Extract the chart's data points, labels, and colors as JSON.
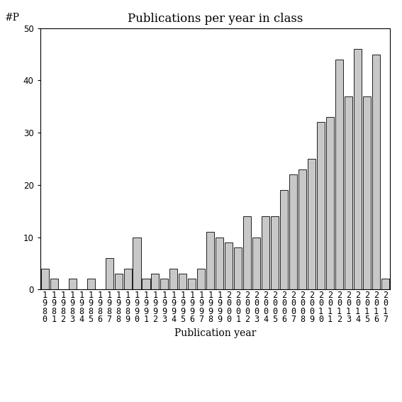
{
  "title": "Publications per year in class",
  "xlabel": "Publication year",
  "ylabel": "#P",
  "years": [
    "1980",
    "1981",
    "1982",
    "1983",
    "1984",
    "1985",
    "1986",
    "1987",
    "1988",
    "1989",
    "1990",
    "1991",
    "1992",
    "1993",
    "1994",
    "1995",
    "1996",
    "1997",
    "1998",
    "1999",
    "2000",
    "2001",
    "2002",
    "2003",
    "2004",
    "2005",
    "2006",
    "2007",
    "2008",
    "2009",
    "2010",
    "2011",
    "2012",
    "2013",
    "2014",
    "2015",
    "2016",
    "2017"
  ],
  "values": [
    4,
    2,
    0,
    2,
    0,
    2,
    0,
    6,
    3,
    4,
    10,
    2,
    3,
    2,
    4,
    3,
    2,
    4,
    11,
    10,
    9,
    8,
    14,
    10,
    14,
    14,
    19,
    22,
    23,
    25,
    32,
    33,
    44,
    37,
    46,
    37,
    45,
    2
  ],
  "bar_color": "#c8c8c8",
  "bar_edge_color": "#000000",
  "ylim": [
    0,
    50
  ],
  "yticks": [
    0,
    10,
    20,
    30,
    40,
    50
  ],
  "bg_color": "#ffffff",
  "title_fontsize": 12,
  "xlabel_fontsize": 10,
  "ylabel_fontsize": 10,
  "tick_fontsize": 8.5
}
